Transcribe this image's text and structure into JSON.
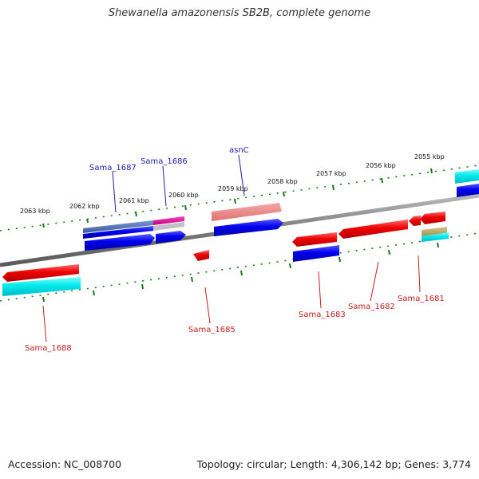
{
  "title": "Shewanella amazonensis SB2B, complete genome",
  "footer": {
    "accession": "Accession: NC_008700",
    "topology": "Topology: circular; Length: 4,306,142 bp; Genes: 3,774"
  },
  "ticks": [
    {
      "label": "2063 kbp"
    },
    {
      "label": "2062 kbp"
    },
    {
      "label": "2061 kbp"
    },
    {
      "label": "2060 kbp"
    },
    {
      "label": "2059 kbp"
    },
    {
      "label": "2058 kbp"
    },
    {
      "label": "2057 kbp"
    },
    {
      "label": "2056 kbp"
    },
    {
      "label": "2055 kbp"
    }
  ],
  "genes": [
    {
      "label": "Sama_1688"
    },
    {
      "label": "Sama_1687"
    },
    {
      "label": "Sama_1686"
    },
    {
      "label": "asnC"
    },
    {
      "label": "Sama_1685"
    },
    {
      "label": "Sama_1683"
    },
    {
      "label": "Sama_1682"
    },
    {
      "label": "Sama_1681"
    }
  ],
  "colors": {
    "forward_gene": "#e01010",
    "forward_cds": "#1010e0",
    "reverse_gene": "#e01010",
    "reverse_cds": "#10e0e0",
    "backbone": "#808080",
    "tick": "#1a7a1a"
  }
}
